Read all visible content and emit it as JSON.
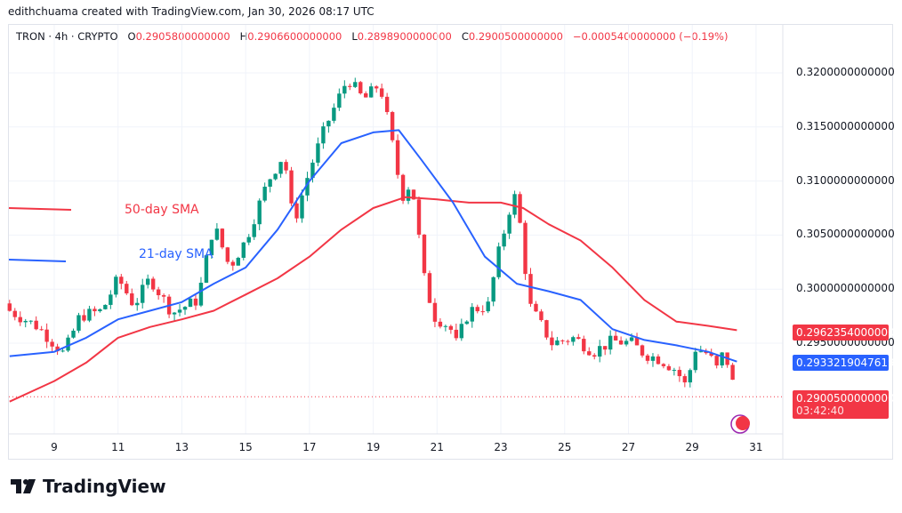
{
  "credit": "edithchuama created with TradingView.com, Jan 30, 2026 08:17 UTC",
  "legend": {
    "symbol": "TRON · 4h · CRYPTO",
    "o_label": "O",
    "o": "0.2905800000000",
    "h_label": "H",
    "h": "0.2906600000000",
    "l_label": "L",
    "l": "0.2898900000000",
    "c_label": "C",
    "c": "0.2900500000000",
    "change": "−0.0005400000000 (−0.19%)"
  },
  "annotations": {
    "sma50": "50-day SMA",
    "sma21": "21-day SMA"
  },
  "price_tags": {
    "sma50": "0.2962354000000",
    "sma21": "0.2933219047619",
    "last": "0.2900500000000",
    "countdown": "03:42:40"
  },
  "logo": "TradingView",
  "colors": {
    "up": "#089981",
    "down": "#f23645",
    "sma21": "#2962ff",
    "sma50": "#f23645"
  },
  "chart_data": {
    "type": "candlestick",
    "timeframe": "4h",
    "yticks": [
      "0.3200000000000",
      "0.3150000000000",
      "0.3100000000000",
      "0.3050000000000",
      "0.3000000000000",
      "0.2950000000000"
    ],
    "ytick_values": [
      0.32,
      0.315,
      0.31,
      0.305,
      0.3,
      0.295
    ],
    "xticks": [
      "9",
      "11",
      "13",
      "15",
      "17",
      "19",
      "21",
      "23",
      "25",
      "27",
      "29",
      "31"
    ],
    "xtick_values": [
      9,
      11,
      13,
      15,
      17,
      19,
      21,
      23,
      25,
      27,
      29,
      31
    ],
    "xlim": [
      7.6,
      31.6
    ],
    "ylim": [
      0.2875,
      0.3215
    ],
    "price_path": [
      [
        7.6,
        0.298
      ],
      [
        8.5,
        0.2965
      ],
      [
        9.3,
        0.294
      ],
      [
        9.8,
        0.2975
      ],
      [
        10.5,
        0.298
      ],
      [
        11,
        0.301
      ],
      [
        11.5,
        0.2985
      ],
      [
        12,
        0.301
      ],
      [
        12.7,
        0.2978
      ],
      [
        13.5,
        0.299
      ],
      [
        14,
        0.306
      ],
      [
        14.5,
        0.302
      ],
      [
        15,
        0.3045
      ],
      [
        15.7,
        0.31
      ],
      [
        16.2,
        0.3125
      ],
      [
        16.5,
        0.306
      ],
      [
        17,
        0.311
      ],
      [
        17.5,
        0.315
      ],
      [
        18.2,
        0.3195
      ],
      [
        18.7,
        0.3175
      ],
      [
        19.2,
        0.319
      ],
      [
        19.5,
        0.315
      ],
      [
        19.9,
        0.3085
      ],
      [
        20.2,
        0.31
      ],
      [
        20.6,
        0.301
      ],
      [
        20.9,
        0.2975
      ],
      [
        21.4,
        0.2965
      ],
      [
        21.6,
        0.295
      ],
      [
        22,
        0.298
      ],
      [
        22.6,
        0.2985
      ],
      [
        22.9,
        0.303
      ],
      [
        23.2,
        0.3065
      ],
      [
        23.4,
        0.309
      ],
      [
        23.6,
        0.306
      ],
      [
        23.9,
        0.2985
      ],
      [
        24.3,
        0.2965
      ],
      [
        24.6,
        0.295
      ],
      [
        25.3,
        0.2955
      ],
      [
        25.9,
        0.2942
      ],
      [
        26.5,
        0.2952
      ],
      [
        27.1,
        0.295
      ],
      [
        27.5,
        0.294
      ],
      [
        28,
        0.2935
      ],
      [
        28.5,
        0.2925
      ],
      [
        28.8,
        0.291
      ],
      [
        29.1,
        0.2945
      ],
      [
        29.5,
        0.294
      ],
      [
        29.8,
        0.2925
      ],
      [
        30,
        0.2945
      ],
      [
        30.2,
        0.292
      ],
      [
        30.4,
        0.29005
      ]
    ],
    "sma21": [
      [
        7.6,
        0.2938
      ],
      [
        9,
        0.2942
      ],
      [
        10,
        0.2955
      ],
      [
        11,
        0.2972
      ],
      [
        12,
        0.298
      ],
      [
        13,
        0.2988
      ],
      [
        14,
        0.3005
      ],
      [
        15,
        0.302
      ],
      [
        16,
        0.3055
      ],
      [
        17,
        0.31
      ],
      [
        18,
        0.3135
      ],
      [
        19,
        0.3145
      ],
      [
        19.8,
        0.3147
      ],
      [
        20.5,
        0.312
      ],
      [
        21.5,
        0.308
      ],
      [
        22.5,
        0.303
      ],
      [
        23.5,
        0.3005
      ],
      [
        24.5,
        0.2998
      ],
      [
        25.5,
        0.299
      ],
      [
        26.5,
        0.2963
      ],
      [
        27.5,
        0.2953
      ],
      [
        28.5,
        0.2948
      ],
      [
        29.5,
        0.2942
      ],
      [
        30.4,
        0.2933
      ]
    ],
    "sma50": [
      [
        7.6,
        0.2896
      ],
      [
        9,
        0.2915
      ],
      [
        10,
        0.2932
      ],
      [
        11,
        0.2955
      ],
      [
        12,
        0.2965
      ],
      [
        13,
        0.2972
      ],
      [
        14,
        0.298
      ],
      [
        15,
        0.2995
      ],
      [
        16,
        0.301
      ],
      [
        17,
        0.303
      ],
      [
        18,
        0.3055
      ],
      [
        19,
        0.3075
      ],
      [
        20,
        0.3085
      ],
      [
        21,
        0.3083
      ],
      [
        22,
        0.308
      ],
      [
        23,
        0.308
      ],
      [
        23.7,
        0.3075
      ],
      [
        24.5,
        0.306
      ],
      [
        25.5,
        0.3045
      ],
      [
        26.5,
        0.302
      ],
      [
        27.5,
        0.299
      ],
      [
        28.5,
        0.297
      ],
      [
        29.5,
        0.2966
      ],
      [
        30.4,
        0.2962
      ]
    ]
  }
}
